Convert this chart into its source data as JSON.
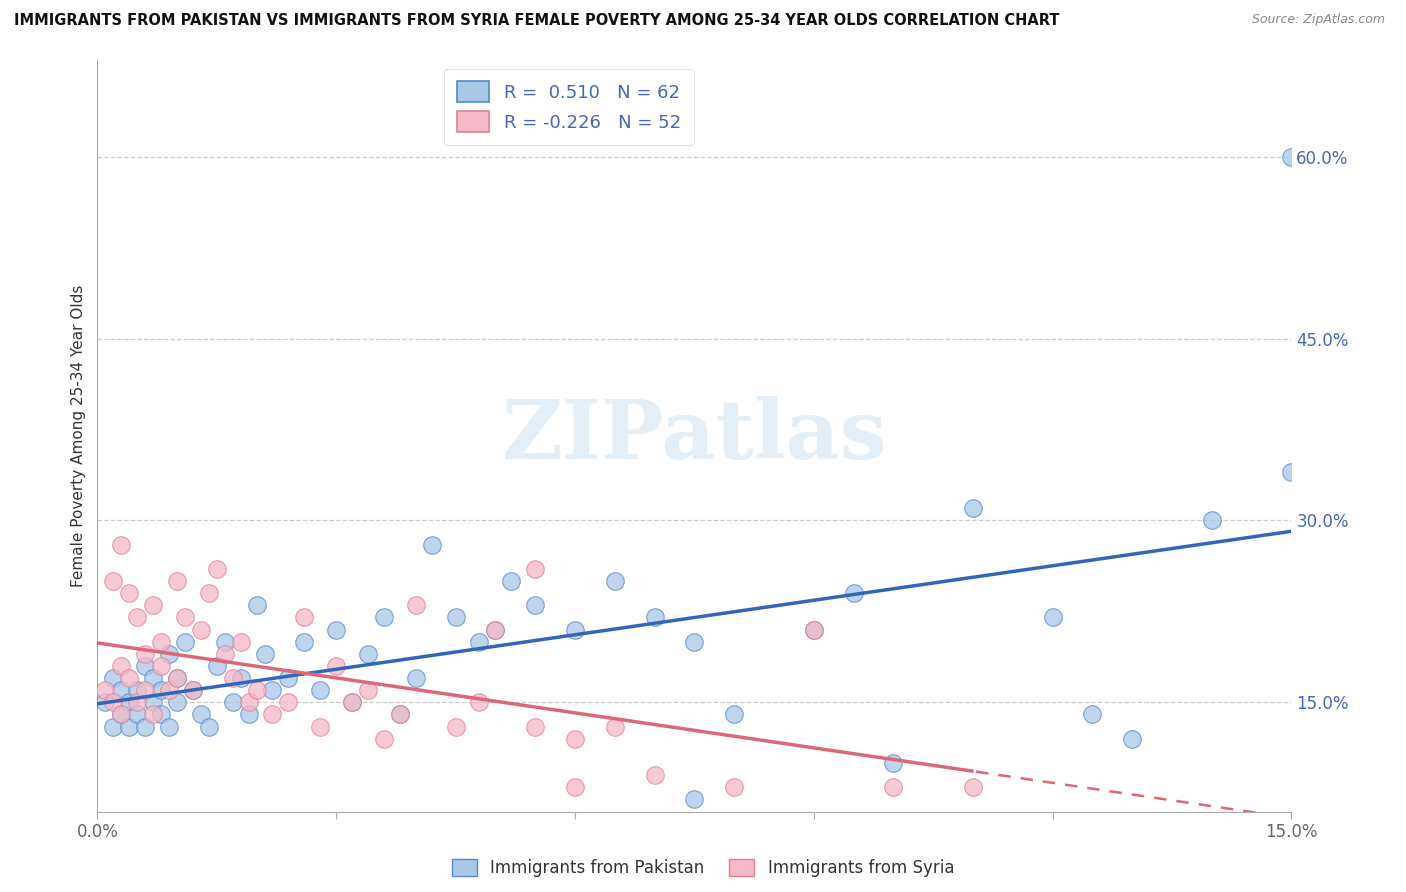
{
  "title": "IMMIGRANTS FROM PAKISTAN VS IMMIGRANTS FROM SYRIA FEMALE POVERTY AMONG 25-34 YEAR OLDS CORRELATION CHART",
  "source": "Source: ZipAtlas.com",
  "ylabel_left": "Female Poverty Among 25-34 Year Olds",
  "xlim": [
    0.0,
    0.15
  ],
  "ylim": [
    0.06,
    0.68
  ],
  "xtick_positions": [
    0.0,
    0.03,
    0.06,
    0.09,
    0.12,
    0.15
  ],
  "xtick_labels": [
    "0.0%",
    "",
    "",
    "",
    "",
    "15.0%"
  ],
  "yticks_right": [
    0.15,
    0.3,
    0.45,
    0.6
  ],
  "ytick_labels_right": [
    "15.0%",
    "30.0%",
    "45.0%",
    "60.0%"
  ],
  "pakistan_color": "#a8c8e8",
  "syria_color": "#f4b8c8",
  "pakistan_edge_color": "#5588cc",
  "syria_edge_color": "#e08090",
  "pakistan_line_color": "#3366bb",
  "syria_line_color": "#dd6677",
  "right_axis_color": "#4466bb",
  "background_color": "#ffffff",
  "watermark_text": "ZIPatlas",
  "watermark_color": "#c8dff0",
  "pakistan_x": [
    0.001,
    0.002,
    0.002,
    0.003,
    0.003,
    0.004,
    0.004,
    0.005,
    0.005,
    0.006,
    0.006,
    0.007,
    0.007,
    0.008,
    0.008,
    0.009,
    0.009,
    0.01,
    0.01,
    0.011,
    0.012,
    0.013,
    0.014,
    0.015,
    0.016,
    0.017,
    0.018,
    0.019,
    0.02,
    0.021,
    0.022,
    0.024,
    0.026,
    0.028,
    0.03,
    0.032,
    0.034,
    0.036,
    0.038,
    0.04,
    0.042,
    0.045,
    0.048,
    0.05,
    0.052,
    0.055,
    0.06,
    0.065,
    0.07,
    0.075,
    0.08,
    0.09,
    0.1,
    0.11,
    0.12,
    0.13,
    0.14,
    0.15,
    0.125,
    0.095,
    0.075,
    0.15
  ],
  "pakistan_y": [
    0.15,
    0.13,
    0.17,
    0.14,
    0.16,
    0.13,
    0.15,
    0.14,
    0.16,
    0.13,
    0.18,
    0.15,
    0.17,
    0.14,
    0.16,
    0.19,
    0.13,
    0.17,
    0.15,
    0.2,
    0.16,
    0.14,
    0.13,
    0.18,
    0.2,
    0.15,
    0.17,
    0.14,
    0.23,
    0.19,
    0.16,
    0.17,
    0.2,
    0.16,
    0.21,
    0.15,
    0.19,
    0.22,
    0.14,
    0.17,
    0.28,
    0.22,
    0.2,
    0.21,
    0.25,
    0.23,
    0.21,
    0.25,
    0.22,
    0.2,
    0.14,
    0.21,
    0.1,
    0.31,
    0.22,
    0.12,
    0.3,
    0.34,
    0.14,
    0.24,
    0.07,
    0.6
  ],
  "syria_x": [
    0.001,
    0.002,
    0.002,
    0.003,
    0.003,
    0.004,
    0.004,
    0.005,
    0.005,
    0.006,
    0.006,
    0.007,
    0.007,
    0.008,
    0.008,
    0.009,
    0.01,
    0.01,
    0.011,
    0.012,
    0.013,
    0.014,
    0.015,
    0.016,
    0.017,
    0.018,
    0.019,
    0.02,
    0.022,
    0.024,
    0.026,
    0.028,
    0.03,
    0.032,
    0.034,
    0.036,
    0.038,
    0.04,
    0.045,
    0.048,
    0.05,
    0.055,
    0.06,
    0.065,
    0.07,
    0.08,
    0.09,
    0.1,
    0.11,
    0.055,
    0.06,
    0.003
  ],
  "syria_y": [
    0.16,
    0.15,
    0.25,
    0.14,
    0.18,
    0.17,
    0.24,
    0.15,
    0.22,
    0.19,
    0.16,
    0.14,
    0.23,
    0.2,
    0.18,
    0.16,
    0.17,
    0.25,
    0.22,
    0.16,
    0.21,
    0.24,
    0.26,
    0.19,
    0.17,
    0.2,
    0.15,
    0.16,
    0.14,
    0.15,
    0.22,
    0.13,
    0.18,
    0.15,
    0.16,
    0.12,
    0.14,
    0.23,
    0.13,
    0.15,
    0.21,
    0.13,
    0.12,
    0.13,
    0.09,
    0.08,
    0.21,
    0.08,
    0.08,
    0.26,
    0.08,
    0.28
  ]
}
